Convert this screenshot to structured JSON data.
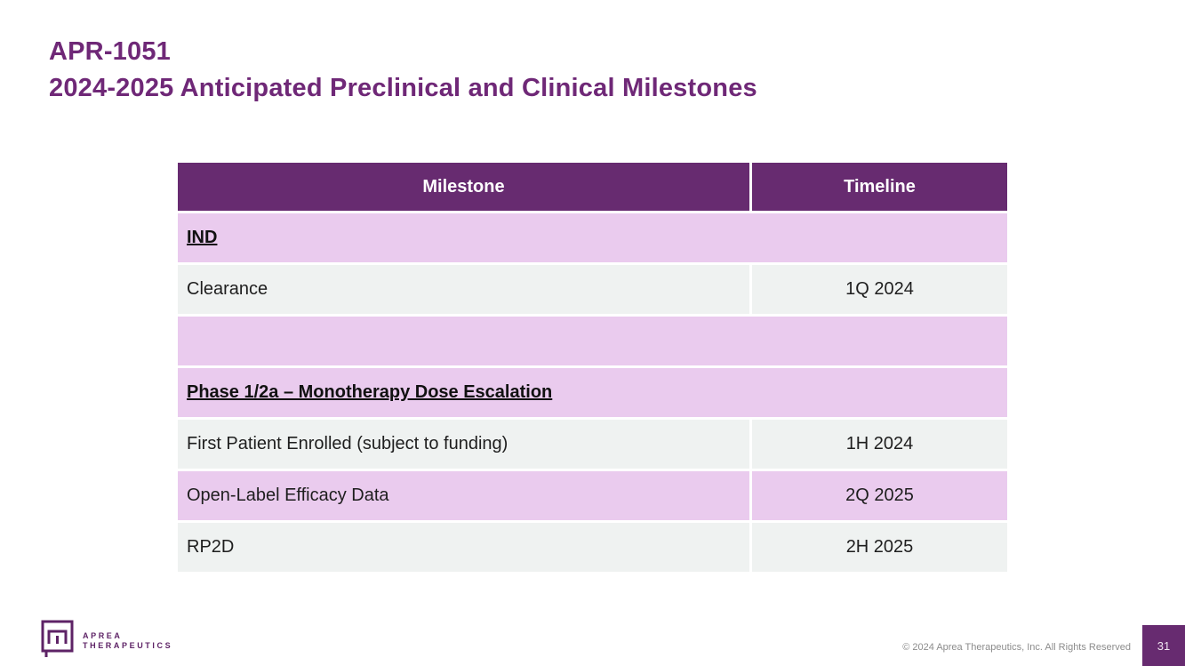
{
  "title": {
    "line1": "APR-1051",
    "line2": "2024-2025 Anticipated Preclinical and Clinical Milestones"
  },
  "table": {
    "headers": [
      "Milestone",
      "Timeline"
    ],
    "rows": [
      {
        "milestone": "IND",
        "timeline": "",
        "style": "section",
        "bg": "pink",
        "span": true
      },
      {
        "milestone": "Clearance",
        "timeline": "1Q 2024",
        "style": "data",
        "bg": "gray",
        "span": false
      },
      {
        "milestone": "",
        "timeline": "",
        "style": "spacer",
        "bg": "pink",
        "span": true
      },
      {
        "milestone": "Phase 1/2a – Monotherapy Dose Escalation",
        "timeline": "",
        "style": "section",
        "bg": "pink",
        "span": true
      },
      {
        "milestone": "First Patient Enrolled (subject to funding)",
        "timeline": "1H 2024",
        "style": "data",
        "bg": "gray",
        "span": false
      },
      {
        "milestone": "Open-Label Efficacy Data",
        "timeline": "2Q 2025",
        "style": "data",
        "bg": "pink",
        "span": false
      },
      {
        "milestone": "RP2D",
        "timeline": "2H 2025",
        "style": "data",
        "bg": "gray",
        "span": false
      }
    ]
  },
  "footer": {
    "logo_line1": "APREA",
    "logo_line2": "THERAPEUTICS",
    "copyright": "© 2024 Aprea Therapeutics, Inc. All Rights Reserved",
    "page_number": "31"
  },
  "colors": {
    "title_purple": "#6F2877",
    "header_purple": "#672B70",
    "row_pink": "#EACBEE",
    "row_gray": "#EFF2F1",
    "logo_purple": "#5E2366",
    "copyright_gray": "#8C8C8C"
  }
}
